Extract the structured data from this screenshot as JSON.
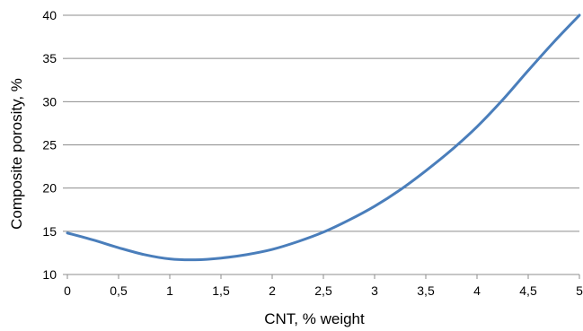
{
  "chart_data": {
    "type": "line",
    "title": "",
    "xlabel": "CNT, % weight",
    "ylabel": "Composite porosity, %",
    "xlim": [
      0,
      5
    ],
    "ylim": [
      10,
      40
    ],
    "grid": true,
    "x_ticks": [
      "0",
      "0,5",
      "1",
      "1,5",
      "2",
      "2,5",
      "3",
      "3,5",
      "4",
      "4,5",
      "5"
    ],
    "y_ticks": [
      "10",
      "15",
      "20",
      "25",
      "30",
      "35",
      "40"
    ],
    "series": [
      {
        "color": "#4a7ebb",
        "x": [
          0,
          0.25,
          0.5,
          0.75,
          1.0,
          1.25,
          1.5,
          1.75,
          2.0,
          2.25,
          2.5,
          2.75,
          3.0,
          3.25,
          3.5,
          3.75,
          4.0,
          4.25,
          4.5,
          4.75,
          5.0
        ],
        "y": [
          14.8,
          14.0,
          13.1,
          12.3,
          11.8,
          11.7,
          11.9,
          12.3,
          12.9,
          13.8,
          14.9,
          16.3,
          17.9,
          19.8,
          22.0,
          24.4,
          27.1,
          30.2,
          33.6,
          36.9,
          40.0
        ]
      }
    ]
  }
}
